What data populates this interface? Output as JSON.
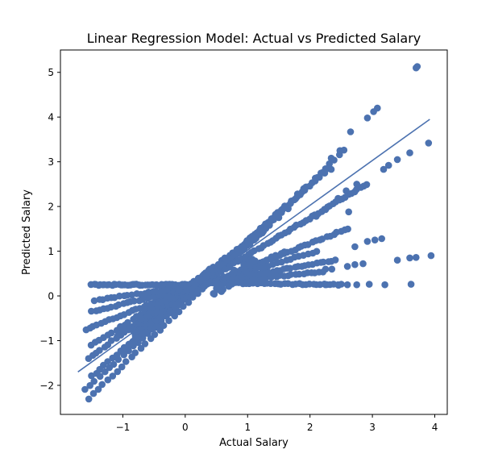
{
  "chart_data": {
    "type": "scatter",
    "title": "Linear Regression Model: Actual vs Predicted Salary",
    "xlabel": "Actual Salary",
    "ylabel": "Predicted Salary",
    "xlim": [
      -2.0,
      4.2
    ],
    "ylim": [
      -2.65,
      5.5
    ],
    "xticks": [
      -1,
      0,
      1,
      2,
      3,
      4
    ],
    "yticks": [
      -2,
      -1,
      0,
      1,
      2,
      3,
      4,
      5
    ],
    "xtick_labels": [
      "−1",
      "0",
      "1",
      "2",
      "3",
      "4"
    ],
    "ytick_labels": [
      "−2",
      "−1",
      "0",
      "1",
      "2",
      "3",
      "4",
      "5"
    ],
    "grid": false,
    "colors": {
      "points": "#4c72b0",
      "fit_line": "#4c72b0"
    },
    "fit_line": {
      "x": [
        -1.72,
        3.92
      ],
      "y": [
        -1.7,
        3.95
      ]
    },
    "point_groups": [
      {
        "kind": "line",
        "x0": -1.55,
        "y0": -2.3,
        "x1": 2.55,
        "y1": 3.25,
        "n": 55
      },
      {
        "kind": "line",
        "x0": -1.6,
        "y0": -2.1,
        "x1": 2.3,
        "y1": 2.85,
        "n": 52
      },
      {
        "kind": "line",
        "x0": -1.5,
        "y0": -1.8,
        "x1": 1.4,
        "y1": 1.7,
        "n": 45
      },
      {
        "kind": "line",
        "x0": -1.55,
        "y0": -1.4,
        "x1": 0.9,
        "y1": 1.1,
        "n": 40
      },
      {
        "kind": "line",
        "x0": -1.5,
        "y0": -1.1,
        "x1": 0.8,
        "y1": 0.9,
        "n": 36
      },
      {
        "kind": "line",
        "x0": -1.6,
        "y0": -0.75,
        "x1": 0.2,
        "y1": 0.25,
        "n": 30
      },
      {
        "kind": "line",
        "x0": -1.5,
        "y0": -0.35,
        "x1": 0.2,
        "y1": 0.22,
        "n": 28
      },
      {
        "kind": "line",
        "x0": -1.45,
        "y0": -0.1,
        "x1": 0.2,
        "y1": 0.24,
        "n": 26
      },
      {
        "kind": "line",
        "x0": -1.5,
        "y0": 0.25,
        "x1": 0.25,
        "y1": 0.25,
        "n": 50
      },
      {
        "kind": "line",
        "x0": -1.0,
        "y0": -1.25,
        "x1": 0.4,
        "y1": 0.6,
        "n": 50
      },
      {
        "kind": "line",
        "x0": -1.1,
        "y0": -0.9,
        "x1": 0.3,
        "y1": 0.3,
        "n": 40
      },
      {
        "kind": "line",
        "x0": 0.25,
        "y0": 0.25,
        "x1": 1.6,
        "y1": 2.0,
        "n": 40
      },
      {
        "kind": "line",
        "x0": 0.3,
        "y0": 0.28,
        "x1": 1.3,
        "y1": 1.5,
        "n": 30
      },
      {
        "kind": "line",
        "x0": 0.3,
        "y0": 0.3,
        "x1": 2.5,
        "y1": 0.25,
        "n": 40
      },
      {
        "kind": "line",
        "x0": 0.3,
        "y0": 0.32,
        "x1": 2.9,
        "y1": 2.5,
        "n": 55
      },
      {
        "kind": "line",
        "x0": 0.4,
        "y0": 0.3,
        "x1": 2.6,
        "y1": 1.5,
        "n": 40
      },
      {
        "kind": "line",
        "x0": 0.4,
        "y0": 0.28,
        "x1": 2.2,
        "y1": 0.55,
        "n": 30
      },
      {
        "kind": "line",
        "x0": 0.4,
        "y0": 0.3,
        "x1": 2.4,
        "y1": 0.8,
        "n": 35
      },
      {
        "kind": "line",
        "x0": 0.45,
        "y0": 0.3,
        "x1": 2.1,
        "y1": 1.0,
        "n": 25
      },
      {
        "kind": "line",
        "x0": 0.6,
        "y0": 0.35,
        "x1": 1.6,
        "y1": 1.0,
        "n": 15
      },
      {
        "kind": "blob",
        "cx": -0.4,
        "cy": -0.35,
        "rx": 0.45,
        "ry": 0.55,
        "n": 160
      },
      {
        "kind": "blob",
        "cx": 0.15,
        "cy": 0.15,
        "rx": 0.35,
        "ry": 0.25,
        "n": 80
      },
      {
        "kind": "blob",
        "cx": 0.8,
        "cy": 0.45,
        "rx": 0.35,
        "ry": 0.3,
        "n": 60
      }
    ],
    "extra_points": [
      [
        3.7,
        5.1
      ],
      [
        3.72,
        5.13
      ],
      [
        3.08,
        4.2
      ],
      [
        3.02,
        4.12
      ],
      [
        2.92,
        3.98
      ],
      [
        2.65,
        3.67
      ],
      [
        2.48,
        3.25
      ],
      [
        2.34,
        3.08
      ],
      [
        2.34,
        2.83
      ],
      [
        3.26,
        2.92
      ],
      [
        3.4,
        3.05
      ],
      [
        3.6,
        3.2
      ],
      [
        3.9,
        3.42
      ],
      [
        3.18,
        2.83
      ],
      [
        2.62,
        1.88
      ],
      [
        3.15,
        1.28
      ],
      [
        3.04,
        1.25
      ],
      [
        2.92,
        1.22
      ],
      [
        2.72,
        1.1
      ],
      [
        3.4,
        0.8
      ],
      [
        3.6,
        0.85
      ],
      [
        3.7,
        0.86
      ],
      [
        3.94,
        0.9
      ],
      [
        2.85,
        0.72
      ],
      [
        2.72,
        0.7
      ],
      [
        2.6,
        0.66
      ],
      [
        2.35,
        0.6
      ],
      [
        2.25,
        0.6
      ],
      [
        3.62,
        0.26
      ],
      [
        3.2,
        0.25
      ],
      [
        2.95,
        0.26
      ],
      [
        2.75,
        0.25
      ],
      [
        2.6,
        0.25
      ],
      [
        2.45,
        0.25
      ],
      [
        2.25,
        0.25
      ],
      [
        1.75,
        2.15
      ],
      [
        1.9,
        2.4
      ],
      [
        2.12,
        2.65
      ],
      [
        2.2,
        2.76
      ],
      [
        1.8,
        2.28
      ],
      [
        1.5,
        1.75
      ],
      [
        1.65,
        1.95
      ],
      [
        1.25,
        1.45
      ],
      [
        1.12,
        1.28
      ],
      [
        1.35,
        1.58
      ],
      [
        2.1,
        1.78
      ],
      [
        2.25,
        1.93
      ],
      [
        2.45,
        2.18
      ],
      [
        2.58,
        2.35
      ],
      [
        2.75,
        2.5
      ]
    ]
  }
}
